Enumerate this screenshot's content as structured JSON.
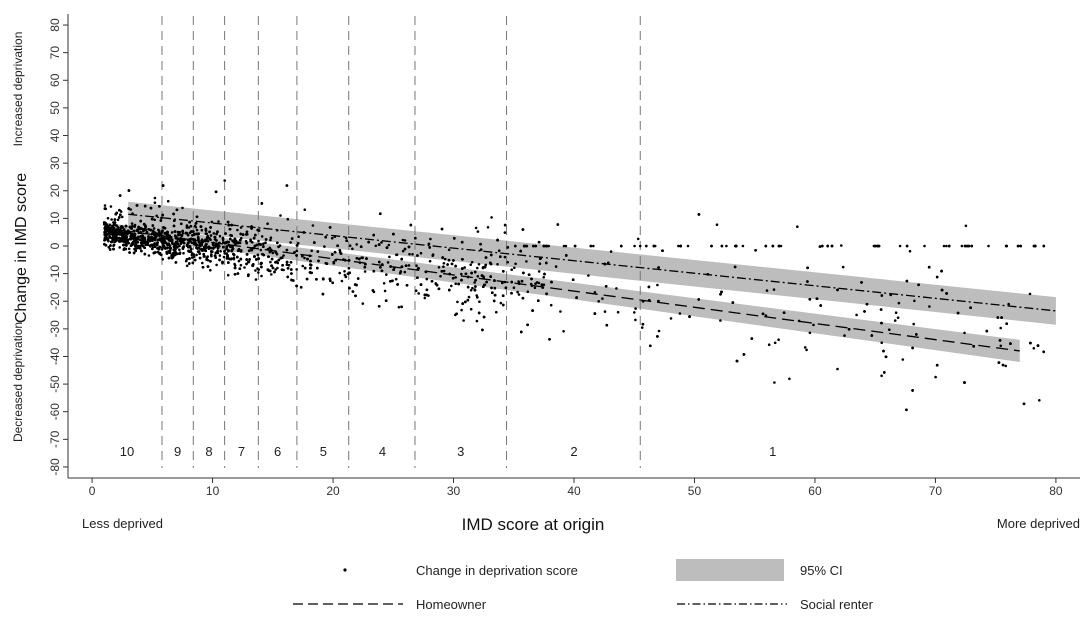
{
  "chart_data": {
    "type": "scatter",
    "xlabel": "IMD score at origin",
    "ylabel": "Change in IMD score",
    "ylabel_low": "Decreased deprivation",
    "ylabel_high": "Increased deprivation",
    "x_low_label": "Less deprived",
    "x_high_label": "More deprived",
    "xlim": [
      -2,
      82
    ],
    "ylim": [
      -84,
      84
    ],
    "xticks": [
      "0",
      "10",
      "20",
      "30",
      "40",
      "50",
      "60",
      "70",
      "80"
    ],
    "yticks": [
      "-80",
      "-70",
      "-60",
      "-50",
      "-40",
      "-30",
      "-20",
      "-10",
      "0",
      "10",
      "20",
      "30",
      "40",
      "50",
      "60",
      "70",
      "80"
    ],
    "grid": false,
    "legend_position": "bottom",
    "decile_boundaries": [
      5.8,
      8.4,
      11.0,
      13.8,
      17.0,
      21.3,
      26.8,
      34.4,
      45.5
    ],
    "decile_labels": [
      {
        "label": "10",
        "x": 2.9
      },
      {
        "label": "9",
        "x": 7.1
      },
      {
        "label": "8",
        "x": 9.7
      },
      {
        "label": "7",
        "x": 12.4
      },
      {
        "label": "6",
        "x": 15.4
      },
      {
        "label": "5",
        "x": 19.2
      },
      {
        "label": "4",
        "x": 24.1
      },
      {
        "label": "3",
        "x": 30.6
      },
      {
        "label": "2",
        "x": 40.0
      },
      {
        "label": "1",
        "x": 56.5
      }
    ],
    "series": [
      {
        "name": "Homeowner",
        "kind": "line",
        "style": "dashed",
        "color": "#000000",
        "x": [
          1,
          77
        ],
        "y": [
          6.5,
          -38
        ],
        "ci_halfwidth": [
          2.0,
          4.0
        ]
      },
      {
        "name": "Social renter",
        "kind": "line",
        "style": "dashdot",
        "color": "#000000",
        "x": [
          3,
          80
        ],
        "y": [
          11.5,
          -23.5
        ],
        "ci_halfwidth": [
          4.5,
          5.0
        ]
      }
    ],
    "scatter": {
      "name": "Change in deprivation score",
      "color": "#000000",
      "approx_points": 3500,
      "description_of_distribution": "dense cloud near origin trending downward with IMD score; many points exactly at 0 change for high IMD"
    },
    "legend": [
      {
        "key": "points",
        "label": "Change in deprivation score"
      },
      {
        "key": "ci",
        "label": "95% CI",
        "color": "#bdbdbd"
      },
      {
        "key": "homeowner",
        "label": "Homeowner"
      },
      {
        "key": "social",
        "label": "Social renter"
      }
    ]
  }
}
